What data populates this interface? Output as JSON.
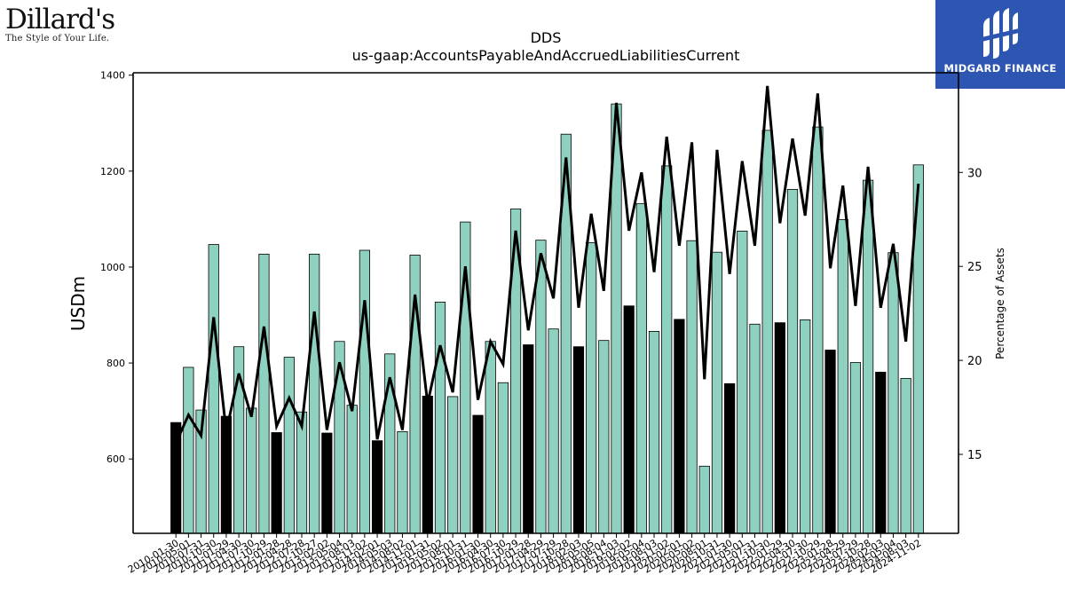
{
  "logos": {
    "left_brand": "Dillard's",
    "left_tagline": "The Style of Your Life.",
    "right_brand": "MIDGARD FINANCE"
  },
  "colors": {
    "bar_teal": "#8fd1c0",
    "bar_black": "#000000",
    "line": "#000000",
    "logo_bg": "#2d56b3"
  },
  "chart_data": {
    "type": "bar",
    "title": "DDS",
    "subtitle": "us-gaap:AccountsPayableAndAccruedLiabilitiesCurrent",
    "ylabel": "USDm",
    "y2label": "Percentage of Assets",
    "ylim": [
      445,
      1405
    ],
    "y2lim": [
      10.8,
      35.3
    ],
    "yticks": [
      600,
      800,
      1000,
      1200,
      1400
    ],
    "y2ticks": [
      15,
      20,
      25,
      30
    ],
    "grid": false,
    "categories": [
      "2010-01-30",
      "2010-05-01",
      "2010-07-31",
      "2010-10-30",
      "2011-01-29",
      "2011-04-30",
      "2011-07-30",
      "2011-10-29",
      "2012-01-28",
      "2012-04-28",
      "2012-07-28",
      "2012-10-27",
      "2013-02-02",
      "2013-05-04",
      "2013-08-03",
      "2013-11-02",
      "2014-02-01",
      "2014-05-03",
      "2014-08-02",
      "2014-11-01",
      "2015-01-31",
      "2015-05-02",
      "2015-08-01",
      "2015-10-31",
      "2016-01-30",
      "2016-04-30",
      "2016-07-30",
      "2016-10-29",
      "2017-01-28",
      "2017-04-29",
      "2017-07-29",
      "2017-10-28",
      "2018-02-03",
      "2018-05-05",
      "2018-08-04",
      "2018-11-03",
      "2019-02-02",
      "2019-05-04",
      "2019-08-03",
      "2019-11-02",
      "2020-02-01",
      "2020-05-02",
      "2020-08-01",
      "2020-10-31",
      "2021-01-30",
      "2021-05-01",
      "2021-07-31",
      "2021-10-30",
      "2022-01-29",
      "2022-04-30",
      "2022-07-30",
      "2022-10-29",
      "2023-01-28",
      "2023-04-29",
      "2023-07-29",
      "2023-10-28",
      "2024-02-03",
      "2024-05-04",
      "2024-08-03",
      "2024-11-02"
    ],
    "tick_labels": [
      "2010-01-30",
      "2010-05-01",
      "2010-07-31",
      "2010-10-30",
      "2011-01-29",
      "2011-04-30",
      "2011-07-30",
      "2011-10-29",
      "2012-01-28",
      "2012-04-28",
      "2012-07-28",
      "2012-10-27",
      "2013-02-02",
      "2013-05-04",
      "2013-08-03",
      "2013-11-02",
      "2014-02-01",
      "2014-05-03",
      "2014-08-02",
      "2014-11-01",
      "2015-01-31",
      "2015-05-02",
      "2015-08-01",
      "2015-10-31",
      "2016-01-30",
      "2016-04-30",
      "2016-07-30",
      "2016-10-29",
      "2017-01-28",
      "2017-04-29",
      "2017-07-29",
      "2017-10-28",
      "2018-02-03",
      "2018-05-05",
      "2018-08-04",
      "2018-11-03",
      "2019-02-02",
      "2019-05-04",
      "2019-08-03",
      "2019-11-02",
      "2020-02-01",
      "2020-05-02",
      "2020-08-01",
      "2020-10-31",
      "2021-01-30",
      "2021-05-01",
      "2021-07-31",
      "2021-10-30",
      "2022-01-29",
      "2022-04-30",
      "2022-07-30",
      "2022-10-29",
      "2023-01-28",
      "2023-04-29",
      "2023-07-29",
      "2023-10-28",
      "2024-02-03",
      "2024-05-04",
      "2024-08-03",
      "2024-11-02"
    ],
    "series": [
      {
        "name": "",
        "type": "bar",
        "axis": "left",
        "values": [
          676,
          791,
          702,
          1047,
          689,
          834,
          706,
          1027,
          655,
          812,
          698,
          1027,
          654,
          845,
          712,
          1035,
          638,
          819,
          657,
          1025,
          731,
          927,
          730,
          1094,
          691,
          845,
          759,
          1121,
          838,
          1056,
          871,
          1277,
          834,
          1051,
          847,
          1340,
          919,
          1132,
          866,
          1211,
          891,
          1055,
          585,
          1031,
          757,
          1075,
          881,
          1285,
          884,
          1162,
          890,
          1292,
          827,
          1099,
          801,
          1181,
          781,
          1030,
          768,
          1213
        ]
      },
      {
        "name": "",
        "type": "line",
        "axis": "right",
        "values": [
          15.6,
          17.1,
          16.0,
          22.3,
          16.2,
          19.3,
          17.0,
          21.8,
          16.5,
          18.0,
          16.5,
          22.6,
          16.3,
          19.9,
          17.3,
          23.2,
          15.8,
          19.1,
          16.3,
          23.5,
          17.7,
          20.8,
          18.3,
          25.0,
          17.9,
          21.0,
          19.8,
          26.9,
          21.6,
          25.7,
          23.3,
          30.8,
          22.8,
          27.8,
          23.7,
          33.7,
          26.9,
          30.0,
          24.7,
          31.9,
          26.1,
          31.6,
          19.0,
          31.2,
          24.6,
          30.6,
          26.1,
          34.6,
          27.3,
          31.8,
          27.7,
          34.2,
          24.9,
          29.3,
          22.9,
          30.3,
          22.8,
          26.2,
          21.0,
          29.4
        ]
      }
    ],
    "black_bar_indices": [
      0,
      4,
      8,
      12,
      16,
      20,
      24,
      28,
      32,
      36,
      40,
      44,
      48,
      52,
      56
    ]
  }
}
